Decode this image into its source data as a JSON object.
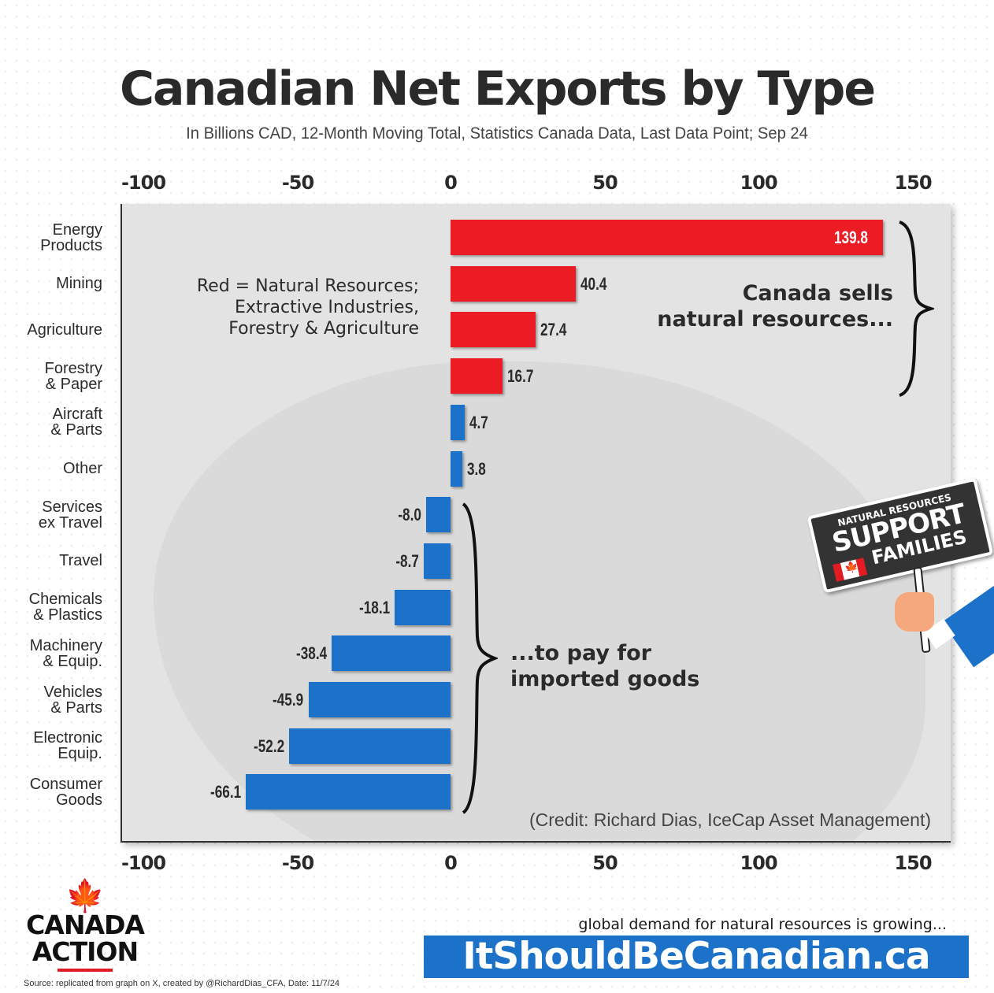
{
  "header": {
    "title": "Canadian Net Exports by Type",
    "subtitle": "In Billions CAD, 12-Month Moving Total, Statistics Canada Data, Last Data Point; Sep 24"
  },
  "colors": {
    "natural_resources": "#ec1c24",
    "other": "#1b72c8",
    "panel_bg": "#e3e3e3"
  },
  "annotations": {
    "legend_note": "Red = Natural Resources;\nExtractive Industries,\nForestry & Agriculture",
    "callout_top": "Canada sells\nnatural resources...",
    "callout_bottom": "...to pay for\nimported goods",
    "credit": "(Credit: Richard Dias, IceCap Asset Management)"
  },
  "sign": {
    "line1": "NATURAL RESOURCES",
    "line2": "SUPPORT",
    "line3": "FAMILIES"
  },
  "footer": {
    "logo_text": "CANADA\nACTION",
    "source": "Source: replicated from graph on X, created by @RichardDias_CFA, Date: 11/7/24",
    "tagline": "global demand for natural resources is growing...",
    "cta": "ItShouldBeCanadian.ca"
  },
  "chart_data": {
    "type": "bar",
    "orientation": "horizontal",
    "title": "Canadian Net Exports by Type",
    "subtitle": "In Billions CAD, 12-Month Moving Total, Statistics Canada Data, Last Data Point; Sep 24",
    "xlabel": "",
    "ylabel": "",
    "xlim": [
      -100,
      150
    ],
    "xticks": [
      "-100",
      "-50",
      "0",
      "50",
      "100",
      "150"
    ],
    "grid": false,
    "categories": [
      "Energy Products",
      "Mining",
      "Agriculture",
      "Forestry & Paper",
      "Aircraft & Parts",
      "Other",
      "Services ex Travel",
      "Travel",
      "Chemicals & Plastics",
      "Machinery & Equip.",
      "Vehicles & Parts",
      "Electronic Equip.",
      "Consumer Goods"
    ],
    "category_labels": [
      "Energy\nProducts",
      "Mining",
      "Agriculture",
      "Forestry\n& Paper",
      "Aircraft\n& Parts",
      "Other",
      "Services\nex Travel",
      "Travel",
      "Chemicals\n& Plastics",
      "Machinery\n& Equip.",
      "Vehicles\n& Parts",
      "Electronic\nEquip.",
      "Consumer\nGoods"
    ],
    "values": [
      139.8,
      40.4,
      27.4,
      16.7,
      4.7,
      3.8,
      -8.0,
      -8.7,
      -18.1,
      -38.4,
      -45.9,
      -52.2,
      -66.1
    ],
    "value_labels": [
      "139.8",
      "40.4",
      "27.4",
      "16.7",
      "4.7",
      "3.8",
      "-8.0",
      "-8.7",
      "-18.1",
      "-38.4",
      "-45.9",
      "-52.2",
      "-66.1"
    ],
    "series_group": [
      "natural_resources",
      "natural_resources",
      "natural_resources",
      "natural_resources",
      "other",
      "other",
      "other",
      "other",
      "other",
      "other",
      "other",
      "other",
      "other"
    ],
    "legend": "Red = Natural Resources; Extractive Industries, Forestry & Agriculture",
    "annotations": [
      "Canada sells natural resources...",
      "...to pay for imported goods",
      "(Credit: Richard Dias, IceCap Asset Management)"
    ]
  }
}
